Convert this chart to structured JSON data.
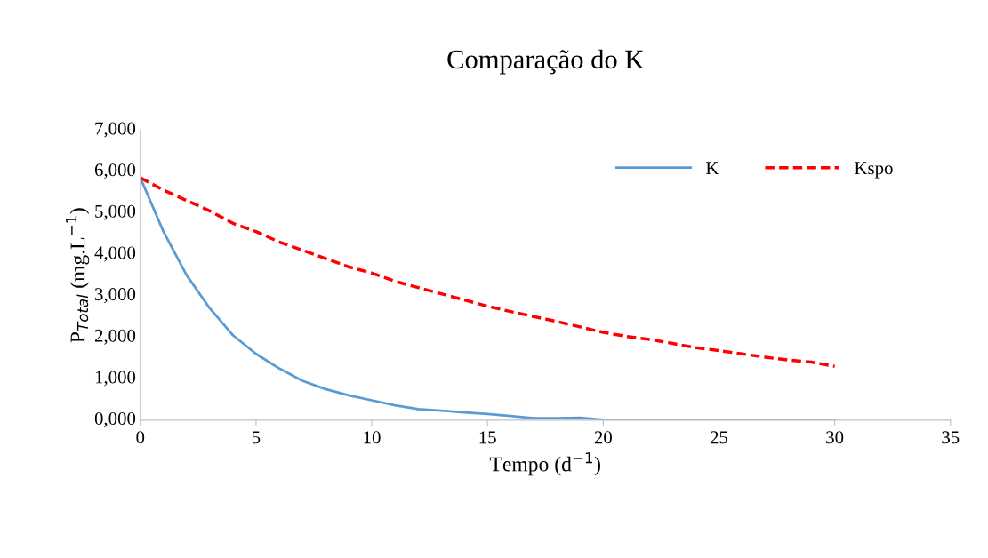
{
  "chart_data": {
    "type": "line",
    "title": "Comparação do K",
    "xlabel": "Tempo (d$^{−1}$)",
    "ylabel": "P$_{Total}$ (mg.L$^{−1}$)",
    "x": [
      0,
      1,
      2,
      3,
      4,
      5,
      6,
      7,
      8,
      9,
      10,
      11,
      12,
      13,
      14,
      15,
      16,
      17,
      18,
      19,
      20,
      21,
      22,
      23,
      24,
      25,
      26,
      27,
      28,
      29,
      30
    ],
    "series": [
      {
        "name": "K",
        "color": "#5b9bd5",
        "line_style": "solid",
        "values": [
          5850,
          4550,
          3500,
          2700,
          2050,
          1600,
          1250,
          950,
          750,
          600,
          480,
          360,
          270,
          230,
          190,
          150,
          100,
          50,
          50,
          60,
          10,
          10,
          10,
          10,
          10,
          10,
          10,
          10,
          10,
          10,
          10
        ]
      },
      {
        "name": "Kspo",
        "color": "#ff0000",
        "line_style": "dashed",
        "values": [
          5850,
          5550,
          5300,
          5050,
          4750,
          4550,
          4300,
          4100,
          3900,
          3700,
          3550,
          3350,
          3200,
          3050,
          2900,
          2750,
          2620,
          2500,
          2380,
          2250,
          2120,
          2020,
          1950,
          1850,
          1750,
          1680,
          1600,
          1520,
          1450,
          1400,
          1300
        ]
      }
    ],
    "xlim": [
      0,
      35
    ],
    "xticks": [
      0,
      5,
      10,
      15,
      20,
      25,
      30,
      35
    ],
    "ylim": [
      0,
      7000
    ],
    "yticks": [
      {
        "value": 0,
        "label": "0,000"
      },
      {
        "value": 1000,
        "label": "1,000"
      },
      {
        "value": 2000,
        "label": "2,000"
      },
      {
        "value": 3000,
        "label": "3,000"
      },
      {
        "value": 4000,
        "label": "4,000"
      },
      {
        "value": 5000,
        "label": "5,000"
      },
      {
        "value": 6000,
        "label": "6,000"
      },
      {
        "value": 7000,
        "label": "7,000"
      }
    ],
    "grid": false,
    "legend": "top right",
    "marker": "none"
  }
}
